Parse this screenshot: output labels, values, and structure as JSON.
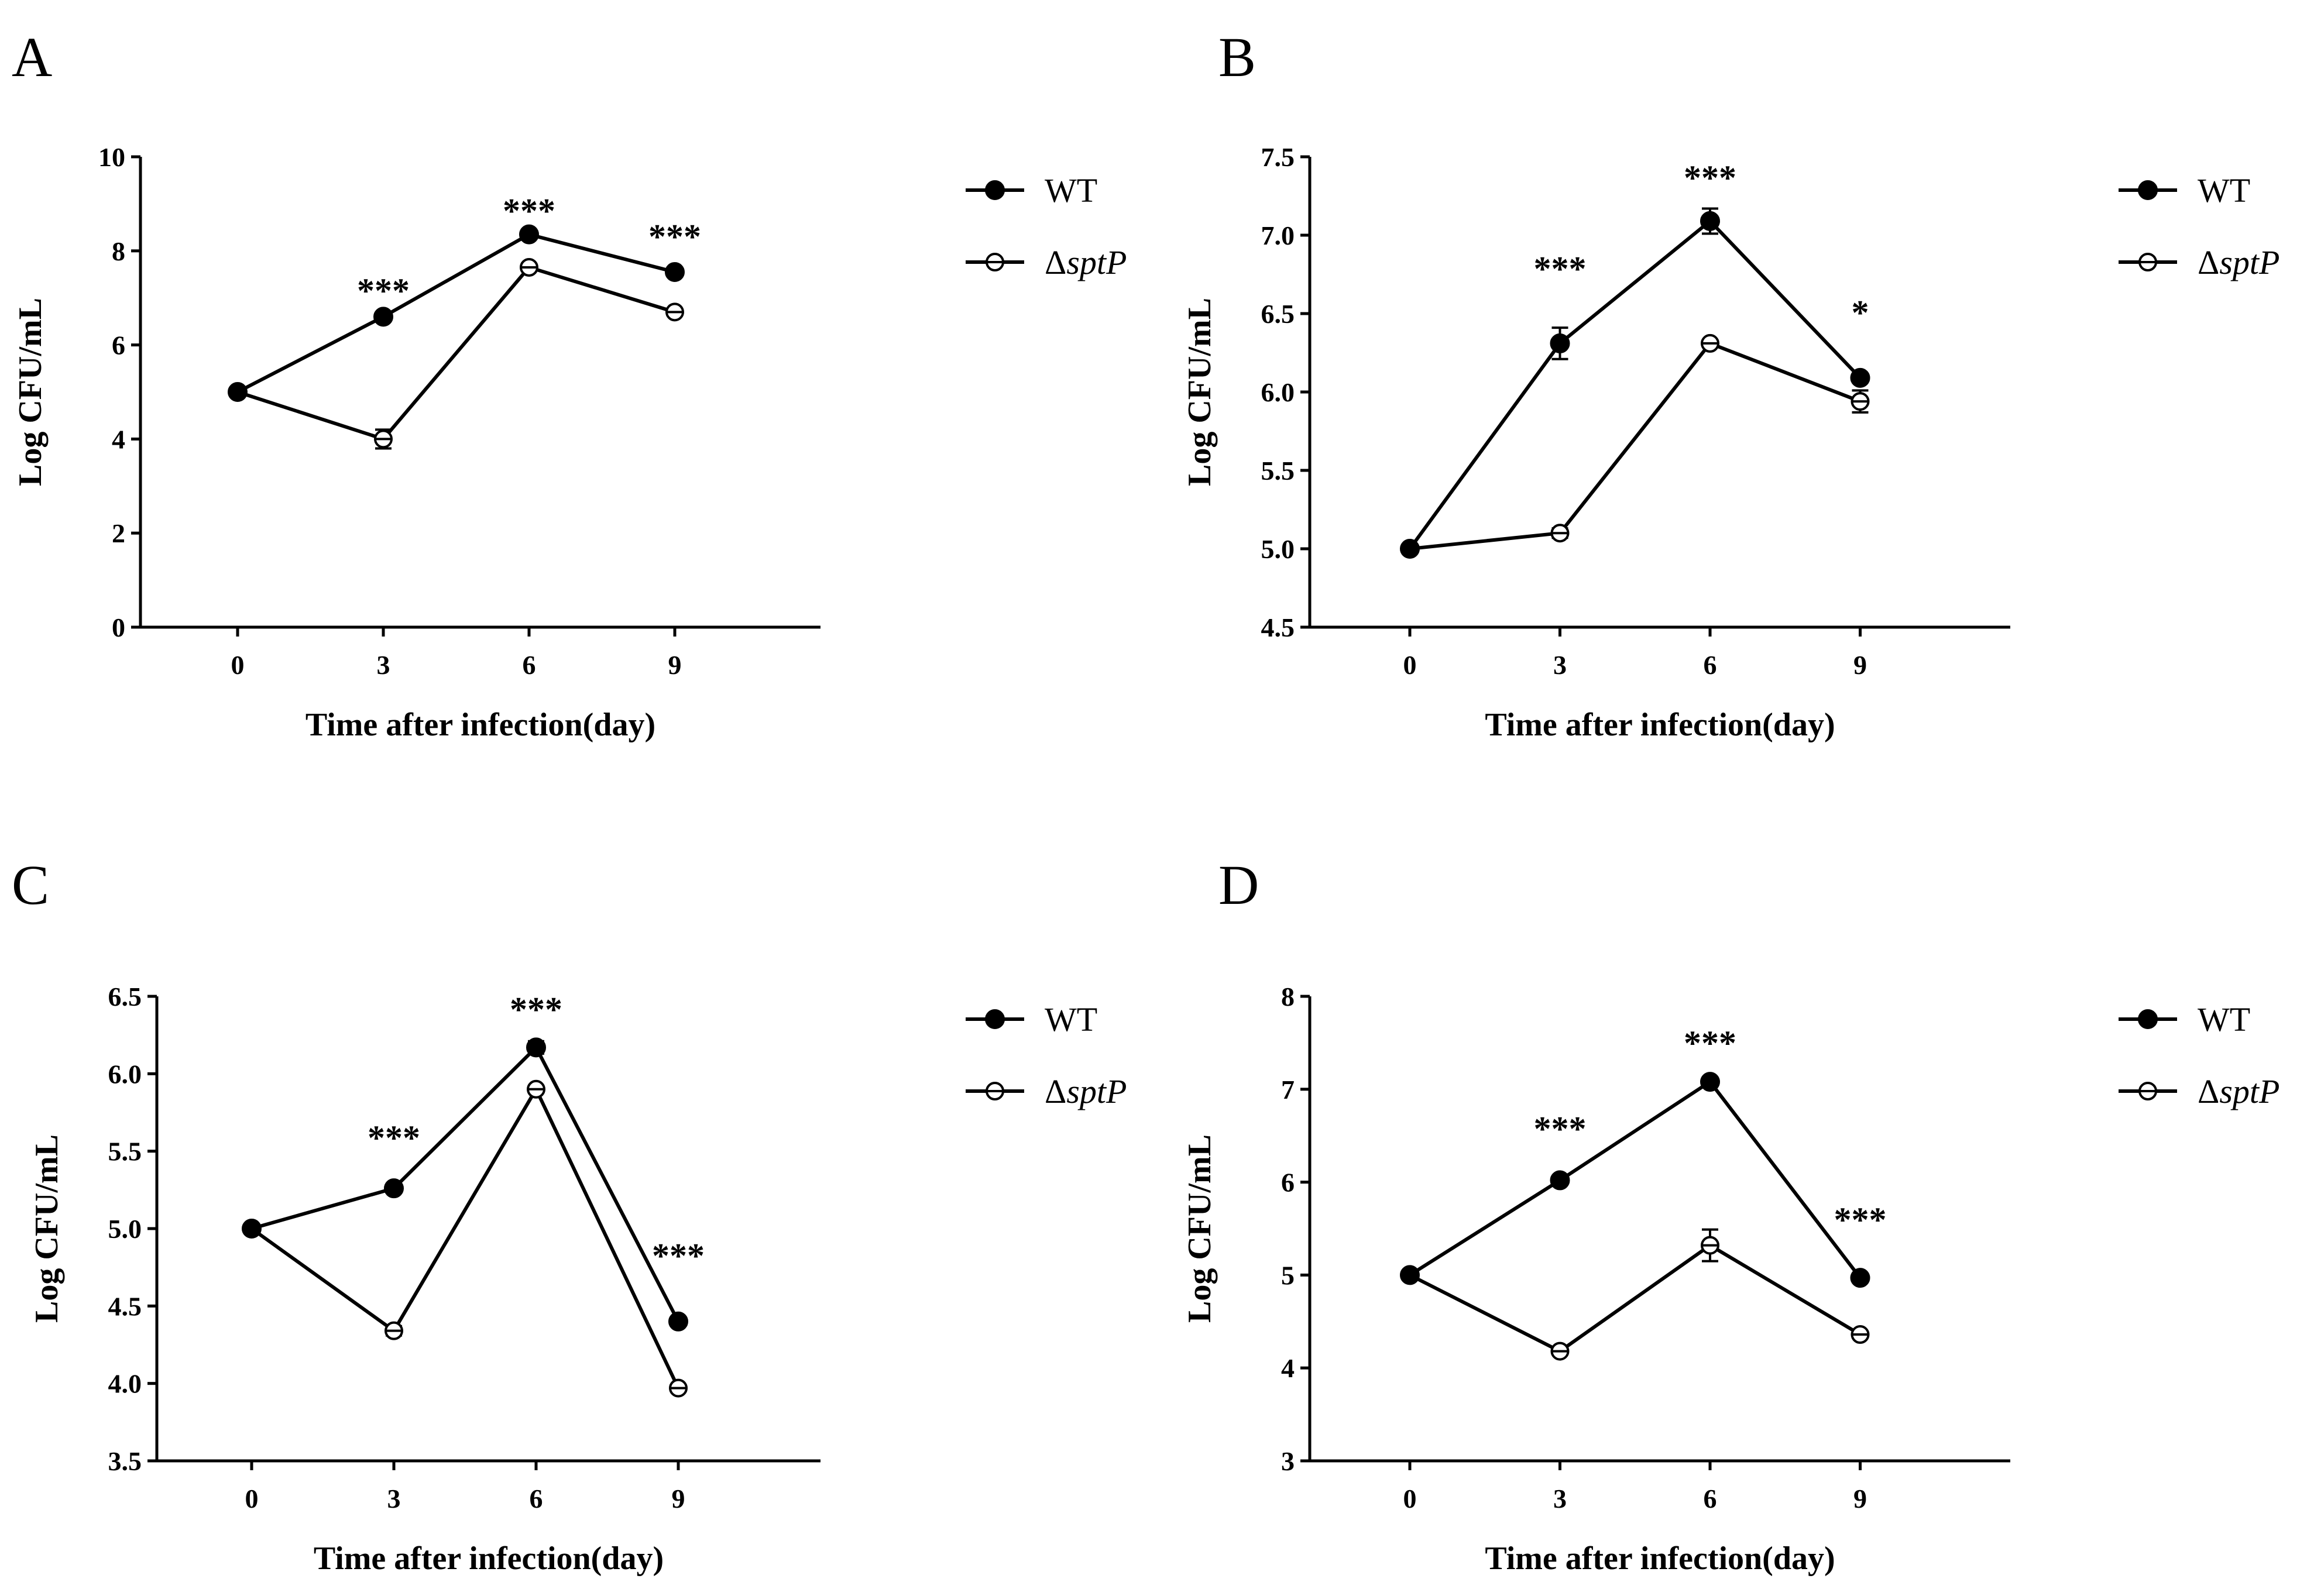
{
  "figure": {
    "legend_symbol_delta": "Δ"
  },
  "chart_data": [
    {
      "panel": "A",
      "type": "line",
      "xlabel": "Time after infection(day)",
      "ylabel": "Log CFU/mL",
      "categories": [
        "0",
        "3",
        "6",
        "9"
      ],
      "x": [
        0,
        3,
        6,
        9
      ],
      "xlim": [
        -2,
        12
      ],
      "ylim": [
        0,
        10
      ],
      "yticks": [
        0,
        2,
        4,
        6,
        8,
        10
      ],
      "ytick_labels": [
        "0",
        "2",
        "4",
        "6",
        "8",
        "10"
      ],
      "series": [
        {
          "name": "WT",
          "marker": "filled-circle",
          "values": [
            5.0,
            6.6,
            8.35,
            7.55
          ],
          "errors": [
            0,
            0.05,
            0.05,
            0.05
          ]
        },
        {
          "name": "sptP",
          "marker": "open-circle",
          "values": [
            5.0,
            4.0,
            7.65,
            6.7
          ],
          "errors": [
            0,
            0.2,
            0.05,
            0.05
          ]
        }
      ],
      "annotations": [
        {
          "x": 3,
          "text": "***",
          "y": 7.2
        },
        {
          "x": 6,
          "text": "***",
          "y": 8.9
        },
        {
          "x": 9,
          "text": "***",
          "y": 8.35
        }
      ],
      "legend": [
        "WT",
        "sptP"
      ]
    },
    {
      "panel": "B",
      "type": "line",
      "xlabel": "Time after infection(day)",
      "ylabel": "Log CFU/mL",
      "categories": [
        "0",
        "3",
        "6",
        "9"
      ],
      "x": [
        0,
        3,
        6,
        9
      ],
      "xlim": [
        -2,
        12
      ],
      "ylim": [
        4.5,
        7.5
      ],
      "yticks": [
        4.5,
        5.0,
        5.5,
        6.0,
        6.5,
        7.0,
        7.5
      ],
      "ytick_labels": [
        "4.5",
        "5.0",
        "5.5",
        "6.0",
        "6.5",
        "7.0",
        "7.5"
      ],
      "series": [
        {
          "name": "WT",
          "marker": "filled-circle",
          "values": [
            5.0,
            6.31,
            7.09,
            6.09
          ],
          "errors": [
            0,
            0.1,
            0.08,
            0.02
          ]
        },
        {
          "name": "sptP",
          "marker": "open-circle",
          "values": [
            5.0,
            5.1,
            6.31,
            5.94
          ],
          "errors": [
            0,
            0.03,
            0.02,
            0.07
          ]
        }
      ],
      "annotations": [
        {
          "x": 3,
          "text": "***",
          "y": 6.8
        },
        {
          "x": 6,
          "text": "***",
          "y": 7.38
        },
        {
          "x": 9,
          "text": "*",
          "y": 6.52
        }
      ],
      "legend": [
        "WT",
        "sptP"
      ]
    },
    {
      "panel": "C",
      "type": "line",
      "xlabel": "Time after infection(day)",
      "ylabel": "Log CFU/mL",
      "categories": [
        "0",
        "3",
        "6",
        "9"
      ],
      "x": [
        0,
        3,
        6,
        9
      ],
      "xlim": [
        -2,
        12
      ],
      "ylim": [
        3.5,
        6.5
      ],
      "yticks": [
        3.5,
        4.0,
        4.5,
        5.0,
        5.5,
        6.0,
        6.5
      ],
      "ytick_labels": [
        "3.5",
        "4.0",
        "4.5",
        "5.0",
        "5.5",
        "6.0",
        "6.5"
      ],
      "series": [
        {
          "name": "WT",
          "marker": "filled-circle",
          "values": [
            5.0,
            5.26,
            6.17,
            4.4
          ],
          "errors": [
            0,
            0.02,
            0.04,
            0.02
          ]
        },
        {
          "name": "sptP",
          "marker": "open-circle",
          "values": [
            5.0,
            4.34,
            5.9,
            3.97
          ],
          "errors": [
            0,
            0.03,
            0.02,
            0.02
          ]
        }
      ],
      "annotations": [
        {
          "x": 3,
          "text": "***",
          "y": 5.6
        },
        {
          "x": 6,
          "text": "***",
          "y": 6.43
        },
        {
          "x": 9,
          "text": "***",
          "y": 4.84
        }
      ],
      "legend": [
        "WT",
        "sptP"
      ]
    },
    {
      "panel": "D",
      "type": "line",
      "xlabel": "Time after infection(day)",
      "ylabel": "Log CFU/mL",
      "categories": [
        "0",
        "3",
        "6",
        "9"
      ],
      "x": [
        0,
        3,
        6,
        9
      ],
      "xlim": [
        -2,
        12
      ],
      "ylim": [
        3,
        8
      ],
      "yticks": [
        3,
        4,
        5,
        6,
        7,
        8
      ],
      "ytick_labels": [
        "3",
        "4",
        "5",
        "6",
        "7",
        "8"
      ],
      "series": [
        {
          "name": "WT",
          "marker": "filled-circle",
          "values": [
            5.0,
            6.02,
            7.08,
            4.97
          ],
          "errors": [
            0,
            0.03,
            0.05,
            0.03
          ]
        },
        {
          "name": "sptP",
          "marker": "open-circle",
          "values": [
            5.0,
            4.18,
            5.32,
            4.36
          ],
          "errors": [
            0,
            0.03,
            0.17,
            0.03
          ]
        }
      ],
      "annotations": [
        {
          "x": 3,
          "text": "***",
          "y": 6.6
        },
        {
          "x": 6,
          "text": "***",
          "y": 7.52
        },
        {
          "x": 9,
          "text": "***",
          "y": 5.62
        }
      ],
      "legend": [
        "WT",
        "sptP"
      ]
    }
  ]
}
